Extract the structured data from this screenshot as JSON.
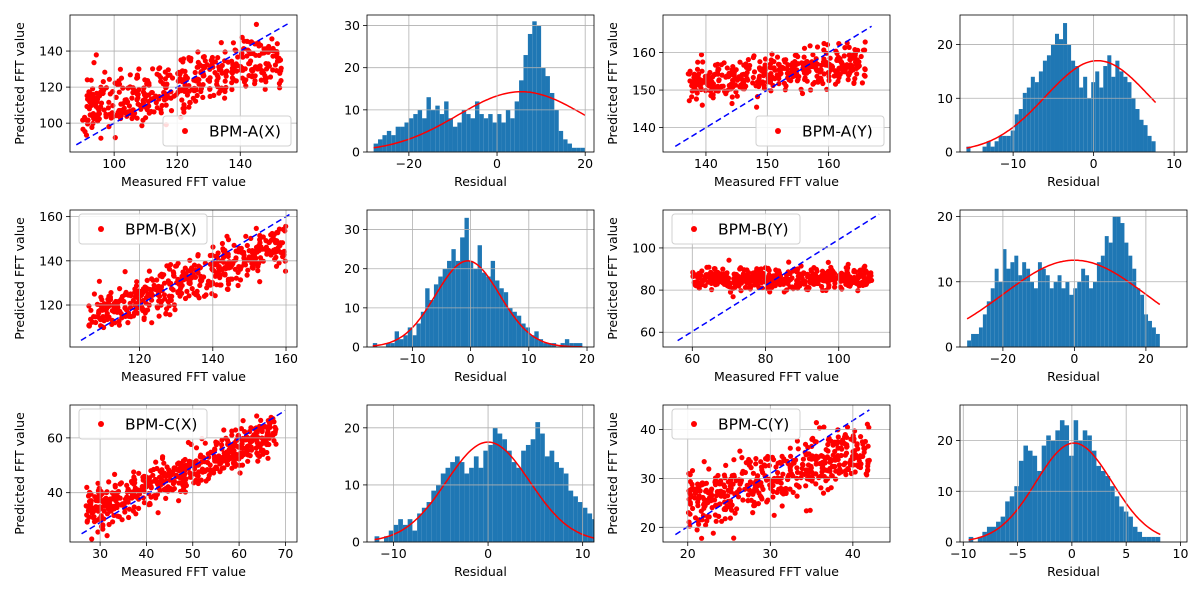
{
  "figure": {
    "scatter_ylabel": "Predicted FFT value",
    "scatter_xlabel": "Measured FFT value",
    "hist_xlabel": "Residual"
  },
  "colors": {
    "scatter": "#ff0000",
    "ideal_line": "#0000ff",
    "histogram": "#1f77b4",
    "fit": "#ff0000",
    "grid": "#b0b0b0"
  },
  "chart_data": [
    {
      "type": "scatter",
      "name": "BPM-A(X)",
      "legend": "lower right",
      "xlim": [
        86,
        158
      ],
      "ylim": [
        84,
        160
      ],
      "xticks": [
        100,
        120,
        140
      ],
      "yticks": [
        100,
        120,
        140
      ],
      "diagonal": [
        [
          88,
          88
        ],
        [
          155,
          155
        ]
      ],
      "x_range": [
        90,
        153
      ],
      "fit": {
        "slope": 0.45,
        "intercept": 67
      },
      "spread": 8,
      "n": 450,
      "seed": 11,
      "grid": true
    },
    {
      "type": "histogram",
      "xlim": [
        -29.5,
        22
      ],
      "ylim": [
        0,
        32.5
      ],
      "xticks": [
        -20,
        0,
        20
      ],
      "yticks": [
        0,
        10,
        20,
        30
      ],
      "bin_start": -28,
      "bin_width": 1,
      "counts": [
        2,
        3,
        4,
        5,
        4,
        6,
        6,
        7,
        8,
        9,
        10,
        8,
        13,
        10,
        11,
        9,
        12,
        8,
        6,
        7,
        10,
        9,
        8,
        12,
        9,
        8,
        9,
        7,
        9,
        7,
        10,
        8,
        12,
        17,
        23,
        28,
        31,
        30,
        20,
        18,
        14,
        10,
        5,
        3,
        2,
        1,
        1,
        1
      ],
      "gauss": {
        "mean": 5.5,
        "sigma": 14.5,
        "peak": 14.3
      },
      "grid": true
    },
    {
      "type": "scatter",
      "name": "BPM-A(Y)",
      "legend": "lower right",
      "xlim": [
        133,
        170
      ],
      "ylim": [
        133.5,
        170
      ],
      "xticks": [
        140,
        150,
        160
      ],
      "yticks": [
        140,
        150,
        160
      ],
      "diagonal": [
        [
          135,
          135
        ],
        [
          167,
          167
        ]
      ],
      "x_range": [
        137,
        166
      ],
      "fit": {
        "slope": 0.18,
        "intercept": 127.5
      },
      "spread": 2.4,
      "n": 420,
      "seed": 23,
      "grid": true
    },
    {
      "type": "histogram",
      "xlim": [
        -16.6,
        11.6
      ],
      "ylim": [
        0,
        25.5
      ],
      "xticks": [
        -10,
        0,
        10
      ],
      "yticks": [
        0,
        10,
        20
      ],
      "bin_start": -15.8,
      "bin_width": 0.5,
      "counts": [
        1,
        0,
        0,
        0,
        1,
        2,
        1,
        2,
        3,
        3,
        3,
        4,
        7,
        8,
        11,
        12,
        14,
        13,
        15,
        17,
        18,
        20,
        22,
        21,
        24,
        20,
        17,
        16,
        12,
        14,
        10,
        13,
        15,
        12,
        16,
        18,
        14,
        17,
        15,
        14,
        13,
        10,
        8,
        6,
        5,
        3,
        2
      ],
      "gauss": {
        "mean": 0.5,
        "sigma": 6.5,
        "peak": 17
      },
      "grid": true
    },
    {
      "type": "scatter",
      "name": "BPM-B(X)",
      "legend": "upper left",
      "xlim": [
        101,
        163
      ],
      "ylim": [
        101,
        163
      ],
      "xticks": [
        120,
        140,
        160
      ],
      "yticks": [
        120,
        140,
        160
      ],
      "diagonal": [
        [
          104,
          104
        ],
        [
          161,
          161
        ]
      ],
      "x_range": [
        106,
        160
      ],
      "fit": {
        "slope": 0.62,
        "intercept": 48
      },
      "spread": 5,
      "n": 460,
      "seed": 37,
      "grid": true
    },
    {
      "type": "histogram",
      "xlim": [
        -17.8,
        21.2
      ],
      "ylim": [
        0,
        35
      ],
      "xticks": [
        -10,
        0,
        10,
        20
      ],
      "yticks": [
        0,
        10,
        20,
        30
      ],
      "bin_start": -16.8,
      "bin_width": 0.75,
      "counts": [
        1,
        0,
        0,
        1,
        1,
        4,
        2,
        3,
        5,
        3,
        6,
        9,
        15,
        12,
        16,
        18,
        20,
        22,
        25,
        22,
        28,
        33,
        22,
        20,
        26,
        19,
        18,
        22,
        17,
        15,
        14,
        10,
        9,
        8,
        6,
        5,
        3,
        4,
        2,
        1,
        1,
        1,
        0,
        1,
        2,
        1,
        1,
        1
      ],
      "gauss": {
        "mean": -0.5,
        "sigma": 5.5,
        "peak": 22
      },
      "grid": true
    },
    {
      "type": "scatter",
      "name": "BPM-B(Y)",
      "legend": "upper left",
      "xlim": [
        52,
        114
      ],
      "ylim": [
        53,
        118
      ],
      "xticks": [
        60,
        80,
        100
      ],
      "yticks": [
        60,
        80,
        100
      ],
      "diagonal": [
        [
          56,
          56
        ],
        [
          111,
          116
        ]
      ],
      "x_range": [
        60,
        109
      ],
      "fit": {
        "slope": 0.03,
        "intercept": 83
      },
      "spread": 2.6,
      "n": 480,
      "seed": 51,
      "grid": true
    },
    {
      "type": "histogram",
      "xlim": [
        -32,
        31.5
      ],
      "ylim": [
        0,
        21
      ],
      "xticks": [
        -20,
        0,
        20
      ],
      "yticks": [
        0,
        10,
        20
      ],
      "bin_start": -30,
      "bin_width": 1.1,
      "counts": [
        1,
        2,
        2,
        3,
        5,
        7,
        9,
        12,
        10,
        15,
        12,
        13,
        14,
        11,
        13,
        12,
        10,
        9,
        13,
        12,
        11,
        9,
        10,
        11,
        9,
        10,
        8,
        9,
        10,
        12,
        11,
        9,
        10,
        13,
        14,
        17,
        16,
        20,
        20,
        19,
        16,
        14,
        12,
        9,
        8,
        5,
        4,
        3,
        2
      ],
      "gauss": {
        "mean": 0,
        "sigma": 20,
        "peak": 13.3
      },
      "grid": true
    },
    {
      "type": "scatter",
      "name": "BPM-C(X)",
      "legend": "upper left",
      "xlim": [
        23.5,
        72.5
      ],
      "ylim": [
        22,
        72
      ],
      "xticks": [
        30,
        40,
        50,
        60,
        70
      ],
      "yticks": [
        40,
        60
      ],
      "diagonal": [
        [
          26,
          25
        ],
        [
          70,
          70
        ]
      ],
      "x_range": [
        27,
        68
      ],
      "fit": {
        "slope": 0.72,
        "intercept": 13
      },
      "spread": 3.5,
      "n": 520,
      "seed": 67,
      "grid": true
    },
    {
      "type": "histogram",
      "xlim": [
        -12.8,
        11.2
      ],
      "ylim": [
        0,
        24
      ],
      "xticks": [
        -10,
        0,
        10
      ],
      "yticks": [
        0,
        10,
        20
      ],
      "bin_start": -12,
      "bin_width": 0.5,
      "counts": [
        1,
        0,
        1,
        2,
        3,
        4,
        3,
        4,
        2,
        5,
        6,
        7,
        9,
        10,
        12,
        13,
        14,
        15,
        14,
        12,
        13,
        15,
        13,
        16,
        17,
        20,
        19,
        18,
        16,
        14,
        13,
        16,
        17,
        18,
        21,
        19,
        15,
        16,
        14,
        13,
        12,
        9,
        8,
        7,
        6,
        5,
        4,
        1,
        1,
        1
      ],
      "gauss": {
        "mean": 0,
        "sigma": 4.4,
        "peak": 17.5
      },
      "grid": true
    },
    {
      "type": "scatter",
      "name": "BPM-C(Y)",
      "legend": "upper left",
      "xlim": [
        17,
        44.5
      ],
      "ylim": [
        17,
        45
      ],
      "xticks": [
        20,
        30,
        40
      ],
      "yticks": [
        20,
        30,
        40
      ],
      "diagonal": [
        [
          18.5,
          18.5
        ],
        [
          42,
          44
        ]
      ],
      "x_range": [
        20,
        42
      ],
      "fit": {
        "slope": 0.5,
        "intercept": 15
      },
      "spread": 3,
      "n": 480,
      "seed": 83,
      "grid": true
    },
    {
      "type": "histogram",
      "xlim": [
        -10.3,
        10.6
      ],
      "ylim": [
        0,
        27
      ],
      "xticks": [
        -10,
        -5,
        0,
        5,
        10
      ],
      "yticks": [
        0,
        10,
        20
      ],
      "bin_start": -9.5,
      "bin_width": 0.42,
      "counts": [
        1,
        0,
        1,
        2,
        3,
        3,
        4,
        5,
        8,
        9,
        11,
        16,
        19,
        18,
        17,
        14,
        19,
        21,
        20,
        22,
        24,
        23,
        17,
        24,
        20,
        22,
        21,
        18,
        15,
        14,
        13,
        11,
        9,
        7,
        6,
        5,
        3,
        2,
        1,
        1,
        1,
        1
      ],
      "gauss": {
        "mean": 0.2,
        "sigma": 3.5,
        "peak": 19.5
      },
      "grid": true
    }
  ]
}
